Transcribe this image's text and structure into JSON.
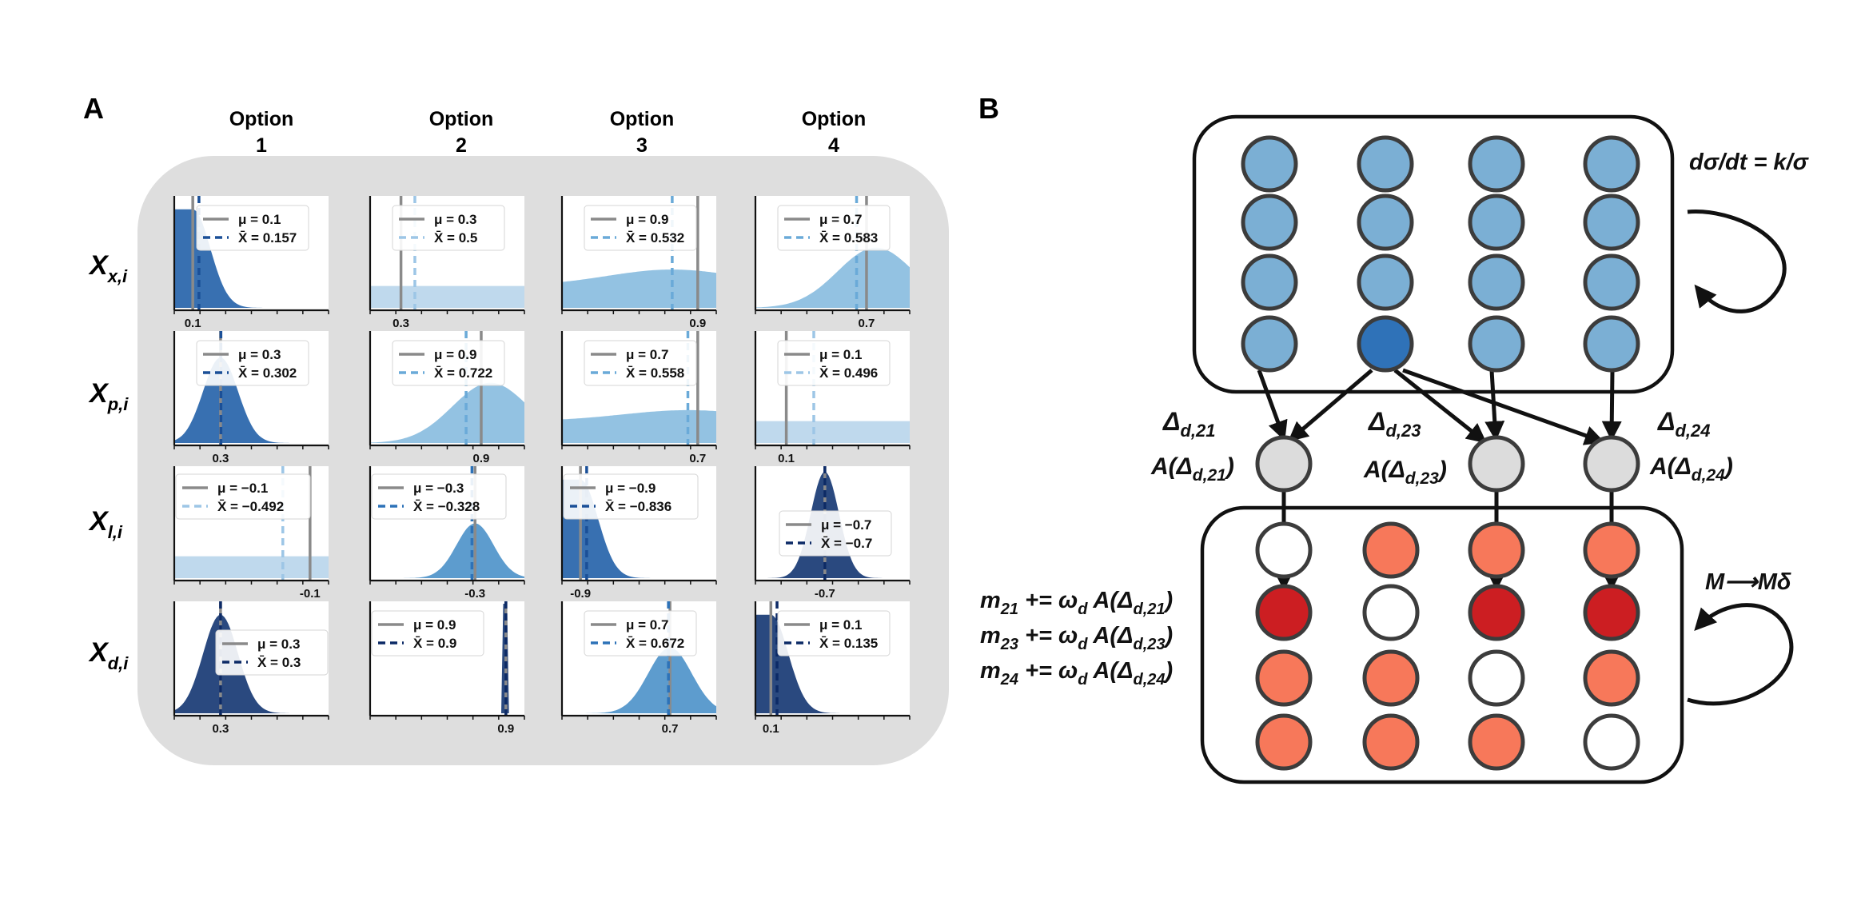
{
  "panel_a": {
    "label": "A",
    "columns": [
      "Option\n1",
      "Option\n2",
      "Option\n3",
      "Option\n4"
    ],
    "rows": [
      {
        "base": "X",
        "sub": "x,i"
      },
      {
        "base": "X",
        "sub": "p,i"
      },
      {
        "base": "X",
        "sub": "l,i"
      },
      {
        "base": "X",
        "sub": "d,i"
      }
    ],
    "cells": [
      [
        {
          "mu": 0.1,
          "xbar": 0.157,
          "mu_text": "μ = 0.1",
          "xbar_text": "X̄ = 0.157",
          "tick": "0.1",
          "shape": "peak",
          "tone": "mid"
        },
        {
          "mu": 0.3,
          "xbar": 0.5,
          "mu_text": "μ = 0.3",
          "xbar_text": "X̄ = 0.5",
          "tick": "0.3",
          "shape": "flat",
          "tone": "pale"
        },
        {
          "mu": 0.9,
          "xbar": 0.532,
          "mu_text": "μ = 0.9",
          "xbar_text": "X̄ = 0.532",
          "tick": "0.9",
          "shape": "flat",
          "tone": "light"
        },
        {
          "mu": 0.7,
          "xbar": 0.583,
          "mu_text": "μ = 0.7",
          "xbar_text": "X̄ = 0.583",
          "tick": "0.7",
          "shape": "wide",
          "tone": "light"
        }
      ],
      [
        {
          "mu": 0.3,
          "xbar": 0.302,
          "mu_text": "μ = 0.3",
          "xbar_text": "X̄ = 0.302",
          "tick": "0.3",
          "shape": "peak",
          "tone": "mid"
        },
        {
          "mu": 0.9,
          "xbar": 0.722,
          "mu_text": "μ = 0.9",
          "xbar_text": "X̄ = 0.722",
          "tick": "0.9",
          "shape": "wide",
          "tone": "light"
        },
        {
          "mu": 0.7,
          "xbar": 0.558,
          "mu_text": "μ = 0.7",
          "xbar_text": "X̄ = 0.558",
          "tick": "0.7",
          "shape": "flat",
          "tone": "light"
        },
        {
          "mu": 0.1,
          "xbar": 0.496,
          "mu_text": "μ = 0.1",
          "xbar_text": "X̄ = 0.496",
          "tick": "0.1",
          "shape": "flat",
          "tone": "pale"
        }
      ],
      [
        {
          "mu": -0.1,
          "xbar": -0.492,
          "mu_text": "μ = −0.1",
          "xbar_text": "X̄ = −0.492",
          "tick": "-0.1",
          "shape": "flat",
          "tone": "pale"
        },
        {
          "mu": -0.3,
          "xbar": -0.328,
          "mu_text": "μ = −0.3",
          "xbar_text": "X̄ = −0.328",
          "tick": "-0.3",
          "shape": "peak",
          "tone": "semi"
        },
        {
          "mu": -0.9,
          "xbar": -0.836,
          "mu_text": "μ = −0.9",
          "xbar_text": "X̄ = −0.836",
          "tick": "-0.9",
          "shape": "peak",
          "tone": "mid"
        },
        {
          "mu": -0.7,
          "xbar": -0.7,
          "mu_text": "μ = −0.7",
          "xbar_text": "X̄ = −0.7",
          "tick": "-0.7",
          "shape": "narrow",
          "tone": "dark"
        }
      ],
      [
        {
          "mu": 0.3,
          "xbar": 0.3,
          "mu_text": "μ = 0.3",
          "xbar_text": "X̄ = 0.3",
          "tick": "0.3",
          "shape": "peak",
          "tone": "dark"
        },
        {
          "mu": 0.9,
          "xbar": 0.9,
          "mu_text": "μ = 0.9",
          "xbar_text": "X̄ = 0.9",
          "tick": "0.9",
          "shape": "spike",
          "tone": "dark"
        },
        {
          "mu": 0.7,
          "xbar": 0.672,
          "mu_text": "μ = 0.7",
          "xbar_text": "X̄ = 0.672",
          "tick": "0.7",
          "shape": "peak",
          "tone": "semi"
        },
        {
          "mu": 0.1,
          "xbar": 0.135,
          "mu_text": "μ = 0.1",
          "xbar_text": "X̄ = 0.135",
          "tick": "0.1",
          "shape": "peak",
          "tone": "dark"
        }
      ]
    ]
  },
  "panel_b": {
    "label": "B",
    "top_rule": "dσ/dt = k/σ",
    "bottom_rule": "M⟶Mδ",
    "deltas": [
      {
        "main": "Δ",
        "sub": "d,21"
      },
      {
        "main": "Δ",
        "sub": "d,23"
      },
      {
        "main": "Δ",
        "sub": "d,24"
      }
    ],
    "activations": [
      {
        "pre": "A(Δ",
        "sub": "d,21",
        "post": ")"
      },
      {
        "pre": "A(Δ",
        "sub": "d,23",
        "post": ")"
      },
      {
        "pre": "A(Δ",
        "sub": "d,24",
        "post": ")"
      }
    ],
    "updates": [
      {
        "m": "m",
        "msub": "21",
        "op": " += ω",
        "wsub": "d",
        "a": " A(Δ",
        "dsub": "d,21",
        "close": ")"
      },
      {
        "m": "m",
        "msub": "23",
        "op": " += ω",
        "wsub": "d",
        "a": " A(Δ",
        "dsub": "d,23",
        "close": ")"
      },
      {
        "m": "m",
        "msub": "24",
        "op": " += ω",
        "wsub": "d",
        "a": " A(Δ",
        "dsub": "d,24",
        "close": ")"
      }
    ],
    "top_grid_highlight": [
      3,
      1
    ],
    "bottom_grid": [
      [
        "white",
        "salmon",
        "salmon",
        "salmon"
      ],
      [
        "red",
        "white",
        "red",
        "red"
      ],
      [
        "salmon",
        "salmon",
        "white",
        "salmon"
      ],
      [
        "salmon",
        "salmon",
        "salmon",
        "white"
      ]
    ],
    "colors": {
      "top_node": "#7bafd4",
      "top_highlight": "#2f72b8",
      "mid_node": "#dcdcdc",
      "salmon": "#f7785a",
      "red": "#cc1e22",
      "white": "#ffffff"
    }
  }
}
